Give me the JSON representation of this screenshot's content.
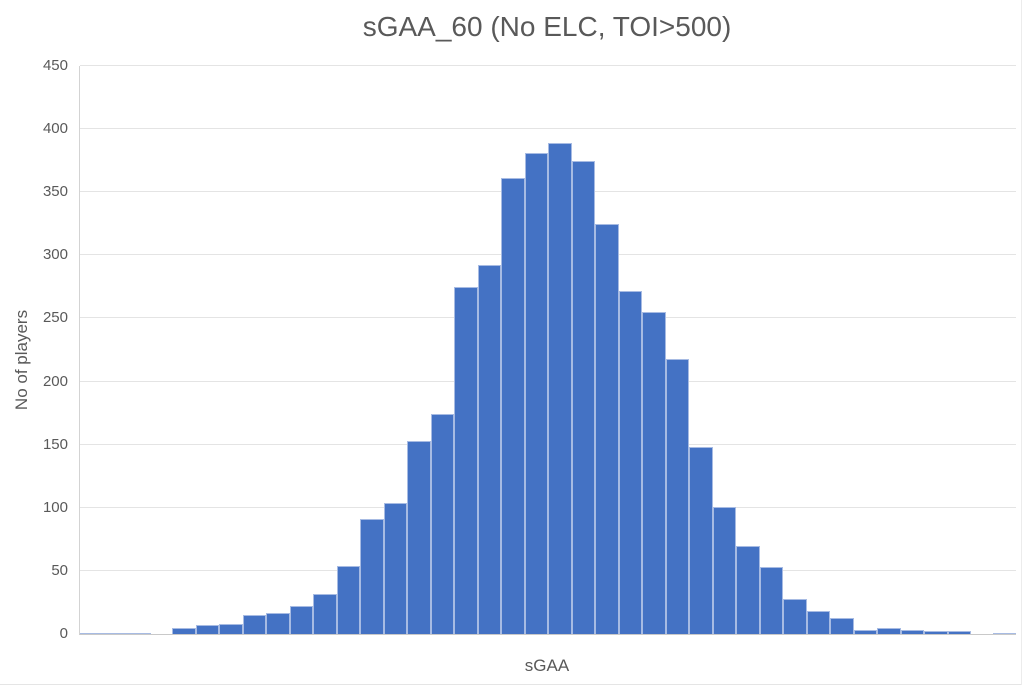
{
  "chart_data": {
    "type": "bar",
    "subtype": "histogram",
    "title": "sGAA_60 (No ELC, TOI>500)",
    "xlabel": "sGAA",
    "ylabel": "No of players",
    "x_tick_labels": [],
    "y_ticks": [
      0,
      50,
      100,
      150,
      200,
      250,
      300,
      350,
      400,
      450
    ],
    "ylim": [
      0,
      450
    ],
    "grid": "horizontal",
    "legend": "none",
    "bins": 40,
    "values": [
      1,
      1,
      1,
      0,
      5,
      7,
      8,
      15,
      17,
      22,
      32,
      54,
      91,
      104,
      153,
      174,
      275,
      292,
      361,
      381,
      389,
      375,
      325,
      272,
      255,
      218,
      148,
      101,
      70,
      53,
      28,
      18,
      13,
      3,
      5,
      3,
      2,
      2,
      0,
      1
    ]
  },
  "colors": {
    "bar_fill": "#4472C4",
    "bar_border": "#A7BBE3",
    "gridline": "#E4E4E4",
    "axis_line": "#C9C9C9",
    "text": "#595959",
    "background": "#FFFFFF"
  }
}
